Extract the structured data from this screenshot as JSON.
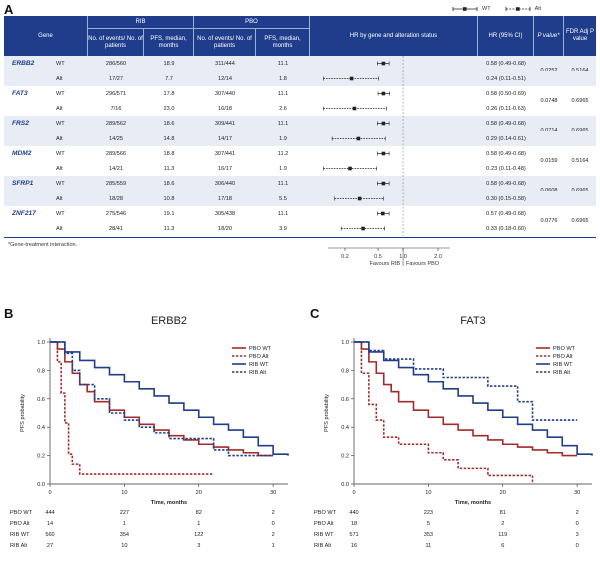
{
  "panel_a": {
    "letter": "A",
    "legend": {
      "wt": "WT",
      "alt": "Alt"
    },
    "headers": {
      "gene": "Gene",
      "rib": "RIB",
      "pbo": "PBO",
      "events": "No. of events/ No. of patients",
      "events_pbo": "No. of events/ No. of patients",
      "pfs": "PFS, median, months",
      "pfs_pbo": "PFS, median, months",
      "hr_plot": "HR by gene and alteration status",
      "hr": "HR (95% CI)",
      "p": "P value*",
      "fdr": "FDR Adj P value"
    },
    "rows": [
      {
        "gene": "ERBB2",
        "status": "WT",
        "rib_events": "286/560",
        "rib_pfs": "18.9",
        "pbo_events": "311/444",
        "pbo_pfs": "11.1",
        "hr": 0.58,
        "lo": 0.49,
        "hi": 0.68,
        "hr_text": "0.58 (0.49-0.68)",
        "p": "0.0252",
        "fdr": "0.5164"
      },
      {
        "gene": "",
        "status": "Alt",
        "rib_events": "17/27",
        "rib_pfs": "7.7",
        "pbo_events": "12/14",
        "pbo_pfs": "1.8",
        "hr": 0.24,
        "lo": 0.11,
        "hi": 0.51,
        "hr_text": "0.24 (0.11-0.51)",
        "p": "",
        "fdr": ""
      },
      {
        "gene": "FAT3",
        "status": "WT",
        "rib_events": "296/571",
        "rib_pfs": "17.8",
        "pbo_events": "307/440",
        "pbo_pfs": "11.1",
        "hr": 0.58,
        "lo": 0.5,
        "hi": 0.69,
        "hr_text": "0.58 (0.50-0.69)",
        "p": "0.0748",
        "fdr": "0.6965"
      },
      {
        "gene": "",
        "status": "Alt",
        "rib_events": "7/16",
        "rib_pfs": "23.0",
        "pbo_events": "16/18",
        "pbo_pfs": "2.6",
        "hr": 0.26,
        "lo": 0.11,
        "hi": 0.63,
        "hr_text": "0.26 (0.11-0.63)",
        "p": "",
        "fdr": ""
      },
      {
        "gene": "FRS2",
        "status": "WT",
        "rib_events": "289/562",
        "rib_pfs": "18.6",
        "pbo_events": "309/441",
        "pbo_pfs": "11.1",
        "hr": 0.58,
        "lo": 0.49,
        "hi": 0.68,
        "hr_text": "0.58 (0.49-0.68)",
        "p": "0.0714",
        "fdr": "0.6965"
      },
      {
        "gene": "",
        "status": "Alt",
        "rib_events": "14/25",
        "rib_pfs": "14.8",
        "pbo_events": "14/17",
        "pbo_pfs": "1.9",
        "hr": 0.29,
        "lo": 0.14,
        "hi": 0.61,
        "hr_text": "0.29 (0.14-0.61)",
        "p": "",
        "fdr": ""
      },
      {
        "gene": "MDM2",
        "status": "WT",
        "rib_events": "289/566",
        "rib_pfs": "18.8",
        "pbo_events": "307/441",
        "pbo_pfs": "11.2",
        "hr": 0.58,
        "lo": 0.49,
        "hi": 0.68,
        "hr_text": "0.58 (0.49-0.68)",
        "p": "0.0159",
        "fdr": "0.5164"
      },
      {
        "gene": "",
        "status": "Alt",
        "rib_events": "14/21",
        "rib_pfs": "11.3",
        "pbo_events": "16/17",
        "pbo_pfs": "1.9",
        "hr": 0.23,
        "lo": 0.11,
        "hi": 0.48,
        "hr_text": "0.23 (0.11-0.48)",
        "p": "",
        "fdr": ""
      },
      {
        "gene": "SFRP1",
        "status": "WT",
        "rib_events": "285/559",
        "rib_pfs": "18.6",
        "pbo_events": "306/440",
        "pbo_pfs": "11.1",
        "hr": 0.58,
        "lo": 0.49,
        "hi": 0.68,
        "hr_text": "0.58 (0.49-0.68)",
        "p": "0.0608",
        "fdr": "0.6965"
      },
      {
        "gene": "",
        "status": "Alt",
        "rib_events": "18/28",
        "rib_pfs": "10.8",
        "pbo_events": "17/18",
        "pbo_pfs": "5.5",
        "hr": 0.3,
        "lo": 0.15,
        "hi": 0.58,
        "hr_text": "0.30 (0.15-0.58)",
        "p": "",
        "fdr": ""
      },
      {
        "gene": "ZNF217",
        "status": "WT",
        "rib_events": "275/546",
        "rib_pfs": "19.1",
        "pbo_events": "305/438",
        "pbo_pfs": "11.1",
        "hr": 0.57,
        "lo": 0.49,
        "hi": 0.68,
        "hr_text": "0.57 (0.49-0.68)",
        "p": "0.0776",
        "fdr": "0.6965"
      },
      {
        "gene": "",
        "status": "Alt",
        "rib_events": "28/41",
        "rib_pfs": "11.3",
        "pbo_events": "18/20",
        "pbo_pfs": "3.9",
        "hr": 0.33,
        "lo": 0.18,
        "hi": 0.6,
        "hr_text": "0.33 (0.18-0.60)",
        "p": "",
        "fdr": ""
      }
    ],
    "footnote": "*Gene-treatment interaction.",
    "forest_axis": {
      "ticks": [
        "0.2",
        "0.5",
        "1.0",
        "2.0"
      ],
      "favours_rib": "Favours RIB",
      "favours_pbo": "Favours PBO"
    }
  },
  "panel_b": {
    "letter": "B",
    "title": "ERBB2",
    "ylabel": "PFS probability",
    "xlabel": "Time, months",
    "yticks": [
      "0.0",
      "0.2",
      "0.4",
      "0.6",
      "0.8",
      "1.0"
    ],
    "xticks": [
      "0",
      "10",
      "20",
      "30"
    ],
    "legend": [
      "PBO WT",
      "PBO Alt",
      "RIB WT",
      "RIB Alt"
    ],
    "risk_table": [
      {
        "label": "PBO WT",
        "values": [
          "444",
          "227",
          "82",
          "2"
        ]
      },
      {
        "label": "PBO Alt",
        "values": [
          "14",
          "1",
          "1",
          "0"
        ]
      },
      {
        "label": "RIB WT",
        "values": [
          "560",
          "354",
          "122",
          "2"
        ]
      },
      {
        "label": "RIB Alt",
        "values": [
          "27",
          "10",
          "3",
          "1"
        ]
      }
    ]
  },
  "panel_c": {
    "letter": "C",
    "title": "FAT3",
    "ylabel": "PFS probability",
    "xlabel": "Time, months",
    "yticks": [
      "0.0",
      "0.2",
      "0.4",
      "0.6",
      "0.8",
      "1.0"
    ],
    "xticks": [
      "0",
      "10",
      "20",
      "30"
    ],
    "legend": [
      "PBO WT",
      "PBO Alt",
      "RIB WT",
      "RIB Alt"
    ],
    "risk_table": [
      {
        "label": "PBO WT",
        "values": [
          "440",
          "223",
          "81",
          "2"
        ]
      },
      {
        "label": "PBO Alt",
        "values": [
          "18",
          "5",
          "2",
          "0"
        ]
      },
      {
        "label": "RIB WT",
        "values": [
          "571",
          "353",
          "119",
          "3"
        ]
      },
      {
        "label": "RIB Alt",
        "values": [
          "16",
          "11",
          "6",
          "0"
        ]
      }
    ]
  },
  "colors": {
    "header_bg": "#1f3d8a",
    "pbo": "#a52a2a",
    "rib": "#1f3d8a",
    "row_shade": "#e8ecf5"
  },
  "chart_data": [
    {
      "type": "line",
      "title": "ERBB2",
      "xlabel": "Time, months",
      "ylabel": "PFS probability",
      "xlim": [
        0,
        32
      ],
      "ylim": [
        0,
        1
      ],
      "series": [
        {
          "name": "PBO WT",
          "x": [
            0,
            1,
            2,
            3,
            4,
            5,
            6,
            8,
            10,
            12,
            14,
            16,
            18,
            20,
            22,
            24,
            26,
            28,
            30
          ],
          "y": [
            1.0,
            0.95,
            0.86,
            0.78,
            0.7,
            0.65,
            0.58,
            0.52,
            0.47,
            0.42,
            0.38,
            0.34,
            0.31,
            0.28,
            0.26,
            0.24,
            0.22,
            0.2,
            0.2
          ]
        },
        {
          "name": "PBO Alt",
          "x": [
            0,
            1,
            1.5,
            2,
            2.5,
            3,
            4,
            22
          ],
          "y": [
            1.0,
            0.86,
            0.64,
            0.43,
            0.21,
            0.14,
            0.07,
            0.07
          ]
        },
        {
          "name": "RIB WT",
          "x": [
            0,
            2,
            4,
            6,
            8,
            10,
            12,
            14,
            16,
            18,
            20,
            22,
            24,
            26,
            28,
            30,
            32
          ],
          "y": [
            1.0,
            0.93,
            0.87,
            0.82,
            0.77,
            0.72,
            0.67,
            0.62,
            0.57,
            0.52,
            0.47,
            0.42,
            0.38,
            0.33,
            0.27,
            0.21,
            0.2
          ]
        },
        {
          "name": "RIB Alt",
          "x": [
            0,
            2,
            3,
            4,
            6,
            8,
            10,
            12,
            14,
            16,
            20,
            22,
            24,
            30
          ],
          "y": [
            1.0,
            0.92,
            0.8,
            0.7,
            0.6,
            0.5,
            0.45,
            0.4,
            0.36,
            0.32,
            0.32,
            0.24,
            0.2,
            0.2
          ]
        }
      ],
      "legend": "top-right"
    },
    {
      "type": "line",
      "title": "FAT3",
      "xlabel": "Time, months",
      "ylabel": "PFS probability",
      "xlim": [
        0,
        32
      ],
      "ylim": [
        0,
        1
      ],
      "series": [
        {
          "name": "PBO WT",
          "x": [
            0,
            1,
            2,
            3,
            4,
            5,
            6,
            8,
            10,
            12,
            14,
            16,
            18,
            20,
            22,
            24,
            26,
            28,
            30
          ],
          "y": [
            1.0,
            0.95,
            0.86,
            0.78,
            0.7,
            0.65,
            0.58,
            0.52,
            0.47,
            0.42,
            0.38,
            0.34,
            0.31,
            0.28,
            0.26,
            0.24,
            0.22,
            0.2,
            0.2
          ]
        },
        {
          "name": "PBO Alt",
          "x": [
            0,
            1,
            2,
            3,
            4,
            6,
            8,
            10,
            12,
            14,
            16,
            18,
            22,
            24
          ],
          "y": [
            1.0,
            0.78,
            0.56,
            0.45,
            0.33,
            0.28,
            0.28,
            0.22,
            0.17,
            0.11,
            0.11,
            0.06,
            0.06,
            0.0
          ]
        },
        {
          "name": "RIB WT",
          "x": [
            0,
            2,
            4,
            6,
            8,
            10,
            12,
            14,
            16,
            18,
            20,
            22,
            24,
            26,
            28,
            30,
            32
          ],
          "y": [
            1.0,
            0.93,
            0.87,
            0.82,
            0.77,
            0.72,
            0.67,
            0.62,
            0.57,
            0.52,
            0.47,
            0.42,
            0.38,
            0.33,
            0.27,
            0.21,
            0.2
          ]
        },
        {
          "name": "RIB Alt",
          "x": [
            0,
            2,
            4,
            6,
            8,
            10,
            12,
            16,
            18,
            22,
            24,
            30
          ],
          "y": [
            1.0,
            0.94,
            0.88,
            0.88,
            0.81,
            0.81,
            0.75,
            0.75,
            0.69,
            0.58,
            0.45,
            0.45
          ]
        }
      ],
      "legend": "top-right"
    }
  ]
}
